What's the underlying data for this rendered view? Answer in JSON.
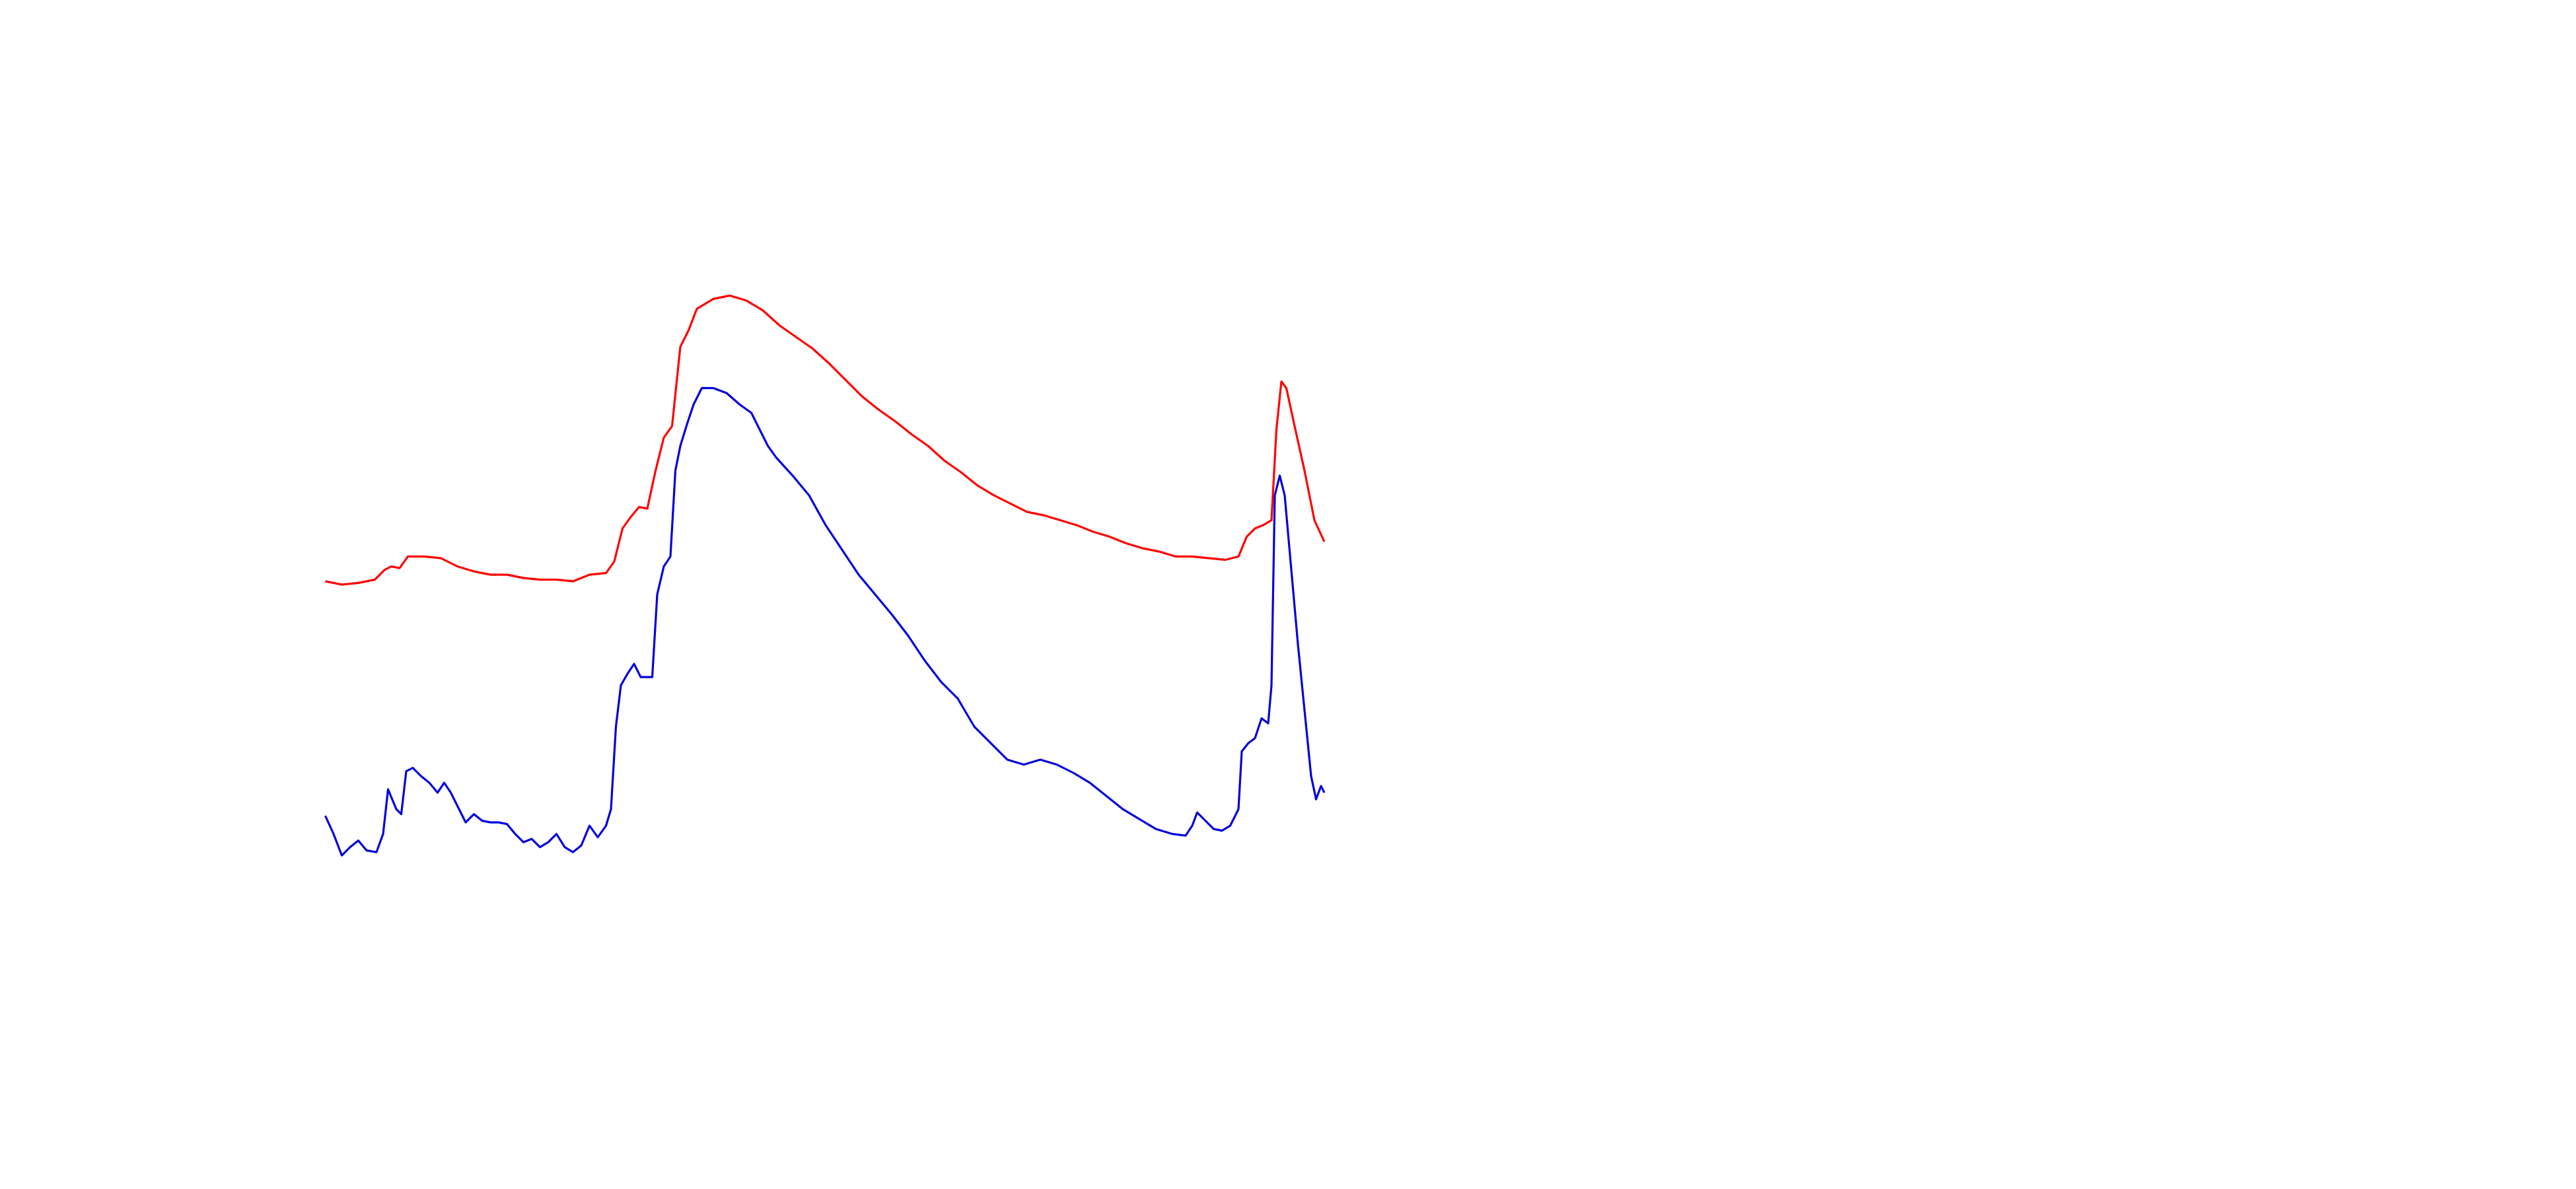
{
  "chart_data": {
    "type": "line",
    "xlim": [
      0,
      1560
    ],
    "ylim": [
      720,
      0
    ],
    "series": [
      {
        "color": "#ff0000",
        "x": [
          197,
          207,
          217,
          227,
          233,
          237,
          242,
          247,
          257,
          267,
          277,
          287,
          297,
          307,
          317,
          327,
          337,
          347,
          357,
          367,
          372,
          377,
          382,
          387,
          392,
          397,
          402,
          407,
          412,
          417,
          422,
          432,
          442,
          452,
          462,
          472,
          482,
          492,
          502,
          512,
          522,
          532,
          542,
          552,
          562,
          572,
          582,
          592,
          602,
          612,
          622,
          632,
          642,
          652,
          662,
          672,
          682,
          692,
          702,
          712,
          722,
          732,
          742,
          750,
          755,
          760,
          765,
          770,
          773,
          776,
          779,
          784,
          790,
          796,
          802
        ],
        "values": [
          352,
          354,
          353,
          351,
          345,
          343,
          344,
          337,
          337,
          338,
          343,
          346,
          348,
          348,
          350,
          351,
          351,
          352,
          348,
          347,
          340,
          320,
          313,
          307,
          308,
          285,
          265,
          258,
          210,
          200,
          187,
          181,
          179,
          182,
          188,
          197,
          204,
          211,
          220,
          230,
          240,
          248,
          255,
          263,
          270,
          279,
          286,
          294,
          300,
          305,
          310,
          312,
          315,
          318,
          322,
          325,
          329,
          332,
          334,
          337,
          337,
          338,
          339,
          337,
          325,
          320,
          318,
          315,
          260,
          231,
          235,
          258,
          285,
          315,
          328
        ]
      },
      {
        "color": "#0000dd",
        "x": [
          197,
          202,
          207,
          212,
          217,
          222,
          228,
          232,
          235,
          240,
          243,
          246,
          250,
          255,
          260,
          265,
          269,
          273,
          277,
          282,
          287,
          292,
          297,
          302,
          307,
          312,
          317,
          322,
          327,
          332,
          337,
          342,
          347,
          352,
          357,
          362,
          367,
          370,
          373,
          376,
          380,
          384,
          388,
          392,
          395,
          398,
          402,
          406,
          409,
          412,
          416,
          420,
          425,
          432,
          440,
          448,
          455,
          460,
          465,
          470,
          480,
          490,
          500,
          510,
          520,
          530,
          540,
          550,
          560,
          570,
          580,
          590,
          600,
          610,
          620,
          630,
          640,
          650,
          660,
          670,
          680,
          690,
          700,
          710,
          718,
          722,
          725,
          730,
          735,
          740,
          745,
          750,
          752,
          756,
          760,
          764,
          768,
          770,
          772,
          775,
          778,
          782,
          786,
          790,
          794,
          797,
          800,
          802
        ],
        "values": [
          494,
          505,
          518,
          513,
          509,
          515,
          516,
          505,
          478,
          490,
          493,
          467,
          465,
          470,
          474,
          480,
          474,
          480,
          488,
          498,
          493,
          497,
          498,
          498,
          499,
          505,
          510,
          508,
          513,
          510,
          505,
          513,
          516,
          512,
          500,
          507,
          500,
          490,
          440,
          415,
          408,
          402,
          410,
          410,
          410,
          360,
          343,
          337,
          285,
          270,
          257,
          245,
          235,
          235,
          238,
          245,
          250,
          260,
          270,
          277,
          288,
          300,
          318,
          333,
          348,
          360,
          372,
          385,
          400,
          413,
          423,
          440,
          450,
          460,
          463,
          460,
          463,
          468,
          474,
          482,
          490,
          496,
          502,
          505,
          506,
          500,
          492,
          497,
          502,
          503,
          500,
          490,
          455,
          450,
          447,
          435,
          438,
          415,
          300,
          288,
          300,
          345,
          390,
          430,
          470,
          484,
          476,
          480
        ]
      }
    ]
  }
}
